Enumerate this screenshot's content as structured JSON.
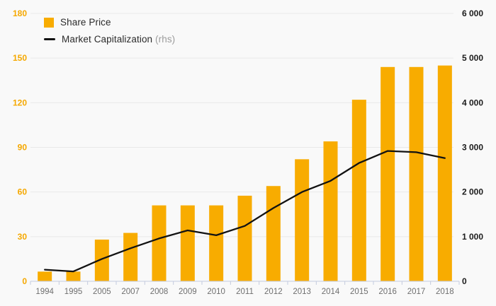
{
  "legend": {
    "share_price_label": "Share Price",
    "market_cap_label": "Market Capitalization",
    "market_cap_suffix": "(rhs)"
  },
  "colors": {
    "bar": "#f8ac00",
    "line": "#121212",
    "left_axis_label": "#f5a800",
    "right_axis_label": "#1c1c1c",
    "x_axis_label": "#6f6f6f",
    "gridline": "#e9e9e9",
    "axis_baseline": "#c3cade",
    "background": "#f9f9f9"
  },
  "chart_data": {
    "type": "bar",
    "subtype": "bar-and-line-dual-axis",
    "categories": [
      "1994",
      "1995",
      "2005",
      "2007",
      "2008",
      "2009",
      "2010",
      "2011",
      "2012",
      "2013",
      "2014",
      "2015",
      "2016",
      "2017",
      "2018"
    ],
    "series": [
      {
        "name": "Share Price",
        "type": "bar",
        "axis": "left",
        "color": "#f8ac00",
        "values": [
          6.5,
          6.5,
          28,
          32.5,
          51,
          51,
          51,
          57.5,
          64,
          82,
          94,
          122,
          144,
          144,
          145
        ]
      },
      {
        "name": "Market Capitalization (rhs)",
        "type": "line",
        "axis": "right",
        "color": "#121212",
        "values": [
          260,
          220,
          500,
          740,
          960,
          1140,
          1030,
          1240,
          1640,
          2000,
          2250,
          2650,
          2920,
          2890,
          2760
        ]
      }
    ],
    "left_axis": {
      "min": 0,
      "max": 180,
      "step": 30,
      "tick_labels": [
        "0",
        "30",
        "60",
        "90",
        "120",
        "150",
        "180"
      ]
    },
    "right_axis": {
      "min": 0,
      "max": 6000,
      "step": 1000,
      "tick_labels": [
        "0",
        "1 000",
        "2 000",
        "3 000",
        "4 000",
        "5 000",
        "6 000"
      ]
    },
    "grid": true,
    "legend_position": "top-left",
    "title": "",
    "xlabel": "",
    "ylabel": ""
  }
}
